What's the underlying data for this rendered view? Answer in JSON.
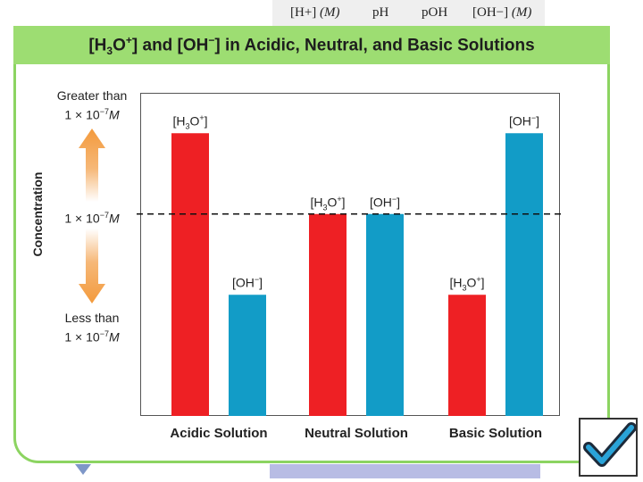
{
  "header_columns": {
    "h_plus": "[H+]",
    "h_plus_unit": "(M)",
    "ph": "pH",
    "poh": "pOH",
    "oh": "[OH−]",
    "oh_unit": "(M)"
  },
  "colors": {
    "title_band": "#9ddd72",
    "frame": "#8cd461",
    "hydronium": "#ee2024",
    "hydroxide": "#129cc7",
    "arrow": "#f39a3c"
  },
  "icons": [
    "up-arrow-icon",
    "down-arrow-icon",
    "checkbox-check-icon"
  ],
  "chart_data": {
    "type": "bar",
    "title": {
      "pre": "[H",
      "sub": "3",
      "mid": "O",
      "sup1": "+",
      "post": "] and [OH",
      "sup2": "−",
      "end": "] in Acidic, Neutral, and Basic Solutions"
    },
    "ylabel": "Concentration",
    "y_ticks": {
      "upper_line1": "Greater than",
      "upper_line2_pre": "1 × 10",
      "upper_line2_exp": "−7",
      "upper_line2_unit": "M",
      "middle_pre": "1 × 10",
      "middle_exp": "−7",
      "middle_unit": "M",
      "lower_line1": "Less than",
      "lower_line2_pre": "1 × 10",
      "lower_line2_exp": "−7",
      "lower_line2_unit": "M"
    },
    "reference_line": {
      "style": "dashed",
      "value": 1,
      "label": "1 × 10−7 M"
    },
    "categories": [
      "Acidic Solution",
      "Neutral Solution",
      "Basic Solution"
    ],
    "series": [
      {
        "name": "[H3O+]",
        "values": [
          1.4,
          1.0,
          0.6
        ]
      },
      {
        "name": "[OH−]",
        "values": [
          0.6,
          1.0,
          1.4
        ]
      }
    ],
    "ylim": [
      0,
      1.6
    ],
    "legend": "none",
    "grid": false
  }
}
